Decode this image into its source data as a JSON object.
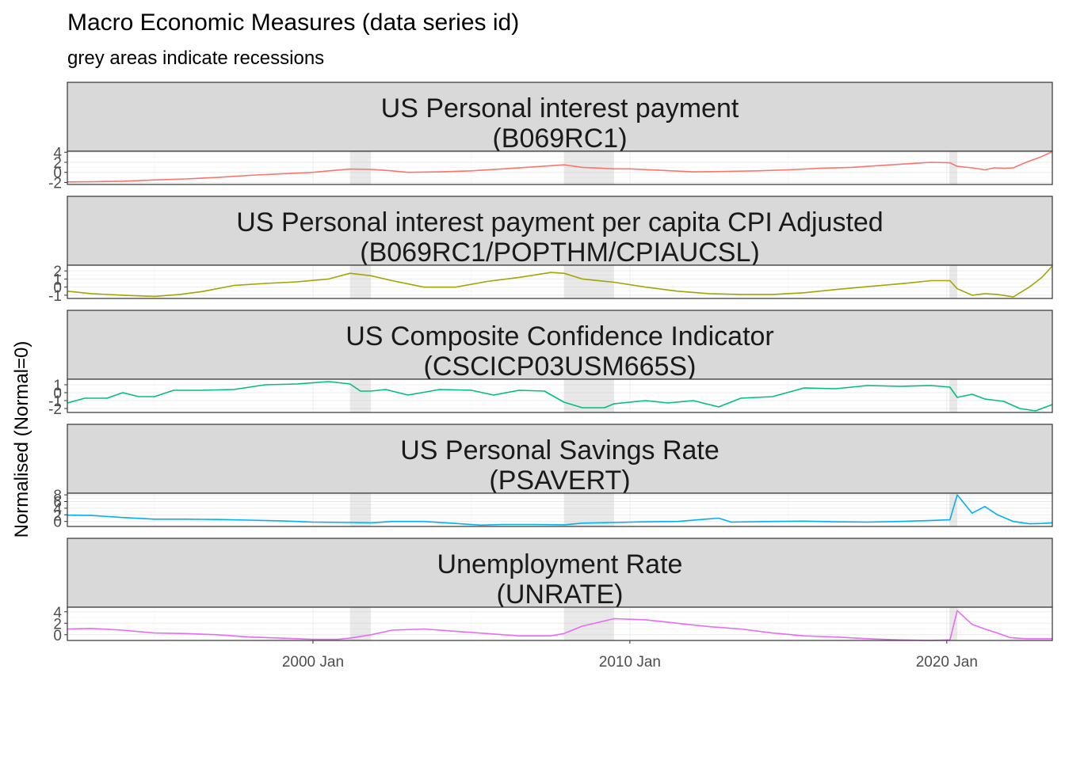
{
  "chart_data": {
    "type": "line",
    "title": "Macro Economic Measures (data series id)",
    "subtitle": "grey areas indicate recessions",
    "ylabel": "Normalised (Normal=0)",
    "xlabel": "",
    "x_range": [
      1992.25,
      2023.33
    ],
    "x_ticks": [
      {
        "value": 2000.0,
        "label": "2000 Jan"
      },
      {
        "value": 2010.0,
        "label": "2010 Jan"
      },
      {
        "value": 2020.0,
        "label": "2020 Jan"
      }
    ],
    "recessions": [
      {
        "start": 2001.17,
        "end": 2001.83
      },
      {
        "start": 2007.92,
        "end": 2009.5
      },
      {
        "start": 2020.08,
        "end": 2020.33
      }
    ],
    "panels": [
      {
        "name": "US Personal interest payment",
        "series_id": "(B069RC1)",
        "color": "#F8766D",
        "ylim": [
          -2.4,
          4.2
        ],
        "y_ticks": [
          "4",
          "2",
          "0",
          "-2"
        ],
        "y_tick_values": [
          4,
          2,
          0,
          -2
        ],
        "points": [
          [
            1992.25,
            -1.9
          ],
          [
            1993,
            -1.85
          ],
          [
            1994,
            -1.75
          ],
          [
            1995,
            -1.5
          ],
          [
            1996,
            -1.3
          ],
          [
            1997,
            -1.0
          ],
          [
            1998,
            -0.6
          ],
          [
            1999,
            -0.3
          ],
          [
            2000,
            0.0
          ],
          [
            2000.5,
            0.3
          ],
          [
            2001.17,
            0.65
          ],
          [
            2001.83,
            0.6
          ],
          [
            2002.5,
            0.3
          ],
          [
            2003,
            0.0
          ],
          [
            2004,
            0.1
          ],
          [
            2005,
            0.3
          ],
          [
            2006,
            0.7
          ],
          [
            2007,
            1.1
          ],
          [
            2007.92,
            1.5
          ],
          [
            2008.5,
            1.0
          ],
          [
            2009.5,
            0.7
          ],
          [
            2010,
            0.7
          ],
          [
            2011,
            0.4
          ],
          [
            2012,
            0.1
          ],
          [
            2013,
            0.2
          ],
          [
            2014,
            0.3
          ],
          [
            2015,
            0.5
          ],
          [
            2016,
            0.8
          ],
          [
            2017,
            1.0
          ],
          [
            2018,
            1.4
          ],
          [
            2019,
            1.8
          ],
          [
            2019.5,
            2.0
          ],
          [
            2020.1,
            1.9
          ],
          [
            2020.33,
            1.2
          ],
          [
            2020.8,
            0.9
          ],
          [
            2021.2,
            0.5
          ],
          [
            2021.5,
            0.9
          ],
          [
            2021.8,
            0.8
          ],
          [
            2022.1,
            0.9
          ],
          [
            2022.5,
            2.0
          ],
          [
            2022.9,
            2.9
          ],
          [
            2023.33,
            4.1
          ]
        ]
      },
      {
        "name": "US Personal interest payment per capita CPI Adjusted",
        "series_id": "(B069RC1/POPTHM/CPIAUCSL)",
        "color": "#A3A500",
        "ylim": [
          -1.4,
          2.7
        ],
        "y_ticks": [
          "2",
          "1",
          "0",
          "-1"
        ],
        "y_tick_values": [
          2,
          1,
          0,
          -1
        ],
        "points": [
          [
            1992.25,
            -0.5
          ],
          [
            1993,
            -0.8
          ],
          [
            1994,
            -1.0
          ],
          [
            1995,
            -1.15
          ],
          [
            1995.8,
            -0.9
          ],
          [
            1996.5,
            -0.55
          ],
          [
            1997.5,
            0.2
          ],
          [
            1998.5,
            0.45
          ],
          [
            1999.5,
            0.65
          ],
          [
            2000.5,
            1.0
          ],
          [
            2001.17,
            1.7
          ],
          [
            2001.83,
            1.4
          ],
          [
            2002.5,
            0.8
          ],
          [
            2003.5,
            0.0
          ],
          [
            2004.5,
            0.0
          ],
          [
            2005.5,
            0.7
          ],
          [
            2006.5,
            1.2
          ],
          [
            2007.5,
            1.8
          ],
          [
            2007.92,
            1.7
          ],
          [
            2008.5,
            1.0
          ],
          [
            2009.5,
            0.6
          ],
          [
            2010.5,
            0.0
          ],
          [
            2011.5,
            -0.5
          ],
          [
            2012.5,
            -0.8
          ],
          [
            2013.5,
            -0.9
          ],
          [
            2014.5,
            -0.9
          ],
          [
            2015.5,
            -0.7
          ],
          [
            2016.5,
            -0.3
          ],
          [
            2017.5,
            0.05
          ],
          [
            2018.5,
            0.4
          ],
          [
            2019.5,
            0.8
          ],
          [
            2020.1,
            0.8
          ],
          [
            2020.33,
            -0.2
          ],
          [
            2020.8,
            -1.0
          ],
          [
            2021.2,
            -0.8
          ],
          [
            2021.6,
            -0.9
          ],
          [
            2022.1,
            -1.2
          ],
          [
            2022.6,
            0.0
          ],
          [
            2023.0,
            1.2
          ],
          [
            2023.33,
            2.6
          ]
        ]
      },
      {
        "name": "US Composite Confidence Indicator",
        "series_id": "(CSCICP03USM665S)",
        "color": "#00BF7D",
        "ylim": [
          -2.5,
          1.7
        ],
        "y_ticks": [
          "1",
          "0",
          "-1",
          "-2"
        ],
        "y_tick_values": [
          1,
          0,
          -1,
          -2
        ],
        "points": [
          [
            1992.25,
            -1.3
          ],
          [
            1992.8,
            -0.7
          ],
          [
            1993.5,
            -0.7
          ],
          [
            1994,
            0.0
          ],
          [
            1994.5,
            -0.5
          ],
          [
            1995,
            -0.5
          ],
          [
            1995.6,
            0.3
          ],
          [
            1996.5,
            0.3
          ],
          [
            1997.5,
            0.4
          ],
          [
            1998.5,
            1.0
          ],
          [
            1999.5,
            1.1
          ],
          [
            2000.5,
            1.4
          ],
          [
            2001.17,
            1.1
          ],
          [
            2001.5,
            0.2
          ],
          [
            2001.83,
            0.2
          ],
          [
            2002.3,
            0.4
          ],
          [
            2003,
            -0.3
          ],
          [
            2004,
            0.4
          ],
          [
            2005,
            0.3
          ],
          [
            2005.7,
            -0.3
          ],
          [
            2006.5,
            0.3
          ],
          [
            2007.3,
            0.2
          ],
          [
            2007.92,
            -1.2
          ],
          [
            2008.5,
            -1.9
          ],
          [
            2009.2,
            -1.9
          ],
          [
            2009.5,
            -1.4
          ],
          [
            2010.5,
            -1.0
          ],
          [
            2011.2,
            -1.3
          ],
          [
            2012,
            -1.0
          ],
          [
            2012.8,
            -1.8
          ],
          [
            2013.5,
            -0.7
          ],
          [
            2014.5,
            -0.5
          ],
          [
            2015.5,
            0.6
          ],
          [
            2016.5,
            0.5
          ],
          [
            2017.5,
            0.9
          ],
          [
            2018.5,
            0.8
          ],
          [
            2019.5,
            0.9
          ],
          [
            2020.1,
            0.7
          ],
          [
            2020.33,
            -0.6
          ],
          [
            2020.8,
            -0.2
          ],
          [
            2021.2,
            -0.8
          ],
          [
            2021.8,
            -1.1
          ],
          [
            2022.3,
            -2.0
          ],
          [
            2022.8,
            -2.3
          ],
          [
            2023.33,
            -1.5
          ]
        ]
      },
      {
        "name": "US Personal Savings Rate",
        "series_id": "(PSAVERT)",
        "color": "#00B0F6",
        "ylim": [
          -1.5,
          8.5
        ],
        "y_ticks": [
          "8",
          "6",
          "4",
          "2",
          "0"
        ],
        "y_tick_values": [
          8,
          6,
          4,
          2,
          0
        ],
        "points": [
          [
            1992.25,
            1.9
          ],
          [
            1993,
            1.8
          ],
          [
            1994,
            1.2
          ],
          [
            1995,
            0.7
          ],
          [
            1996,
            0.7
          ],
          [
            1997,
            0.6
          ],
          [
            1998,
            0.4
          ],
          [
            1999,
            0.2
          ],
          [
            2000,
            -0.2
          ],
          [
            2001.17,
            -0.3
          ],
          [
            2001.83,
            -0.4
          ],
          [
            2002.5,
            0.0
          ],
          [
            2003.5,
            0.0
          ],
          [
            2004.5,
            -0.6
          ],
          [
            2005.3,
            -1.1
          ],
          [
            2006,
            -0.9
          ],
          [
            2007,
            -0.9
          ],
          [
            2007.92,
            -1.0
          ],
          [
            2008.5,
            -0.5
          ],
          [
            2009.5,
            -0.3
          ],
          [
            2010.5,
            -0.1
          ],
          [
            2011.5,
            0.0
          ],
          [
            2012.8,
            1.0
          ],
          [
            2013.2,
            -0.2
          ],
          [
            2014.5,
            0.0
          ],
          [
            2015.5,
            0.1
          ],
          [
            2016.5,
            -0.1
          ],
          [
            2017.5,
            -0.2
          ],
          [
            2018.5,
            0.0
          ],
          [
            2019.5,
            0.3
          ],
          [
            2020.1,
            0.5
          ],
          [
            2020.33,
            8.0
          ],
          [
            2020.8,
            2.5
          ],
          [
            2021.2,
            4.5
          ],
          [
            2021.6,
            2.0
          ],
          [
            2022.1,
            0.0
          ],
          [
            2022.6,
            -0.7
          ],
          [
            2023.0,
            -0.6
          ],
          [
            2023.33,
            -0.4
          ]
        ]
      },
      {
        "name": "Unemployment Rate",
        "series_id": "(UNRATE)",
        "color": "#E76BF3",
        "ylim": [
          -1.0,
          4.8
        ],
        "y_ticks": [
          "4",
          "2",
          "0"
        ],
        "y_tick_values": [
          4,
          2,
          0
        ],
        "points": [
          [
            1992.25,
            1.0
          ],
          [
            1993,
            1.1
          ],
          [
            1994,
            0.8
          ],
          [
            1995,
            0.3
          ],
          [
            1996,
            0.2
          ],
          [
            1997,
            0.0
          ],
          [
            1998,
            -0.4
          ],
          [
            1999,
            -0.6
          ],
          [
            2000,
            -0.8
          ],
          [
            2000.8,
            -0.8
          ],
          [
            2001.17,
            -0.6
          ],
          [
            2001.83,
            0.0
          ],
          [
            2002.5,
            0.8
          ],
          [
            2003.5,
            1.0
          ],
          [
            2004.5,
            0.6
          ],
          [
            2005.5,
            0.2
          ],
          [
            2006.5,
            -0.2
          ],
          [
            2007.5,
            -0.2
          ],
          [
            2007.92,
            0.2
          ],
          [
            2008.5,
            1.5
          ],
          [
            2009.5,
            2.8
          ],
          [
            2010.5,
            2.6
          ],
          [
            2011.5,
            2.0
          ],
          [
            2012.5,
            1.4
          ],
          [
            2013.5,
            1.0
          ],
          [
            2014.5,
            0.3
          ],
          [
            2015.5,
            -0.2
          ],
          [
            2016.5,
            -0.4
          ],
          [
            2017.5,
            -0.7
          ],
          [
            2018.5,
            -0.9
          ],
          [
            2019.5,
            -1.0
          ],
          [
            2020.1,
            -0.9
          ],
          [
            2020.33,
            4.2
          ],
          [
            2020.8,
            1.8
          ],
          [
            2021.2,
            1.0
          ],
          [
            2021.6,
            0.3
          ],
          [
            2022.0,
            -0.5
          ],
          [
            2022.5,
            -0.7
          ],
          [
            2023.33,
            -0.7
          ]
        ]
      }
    ]
  }
}
